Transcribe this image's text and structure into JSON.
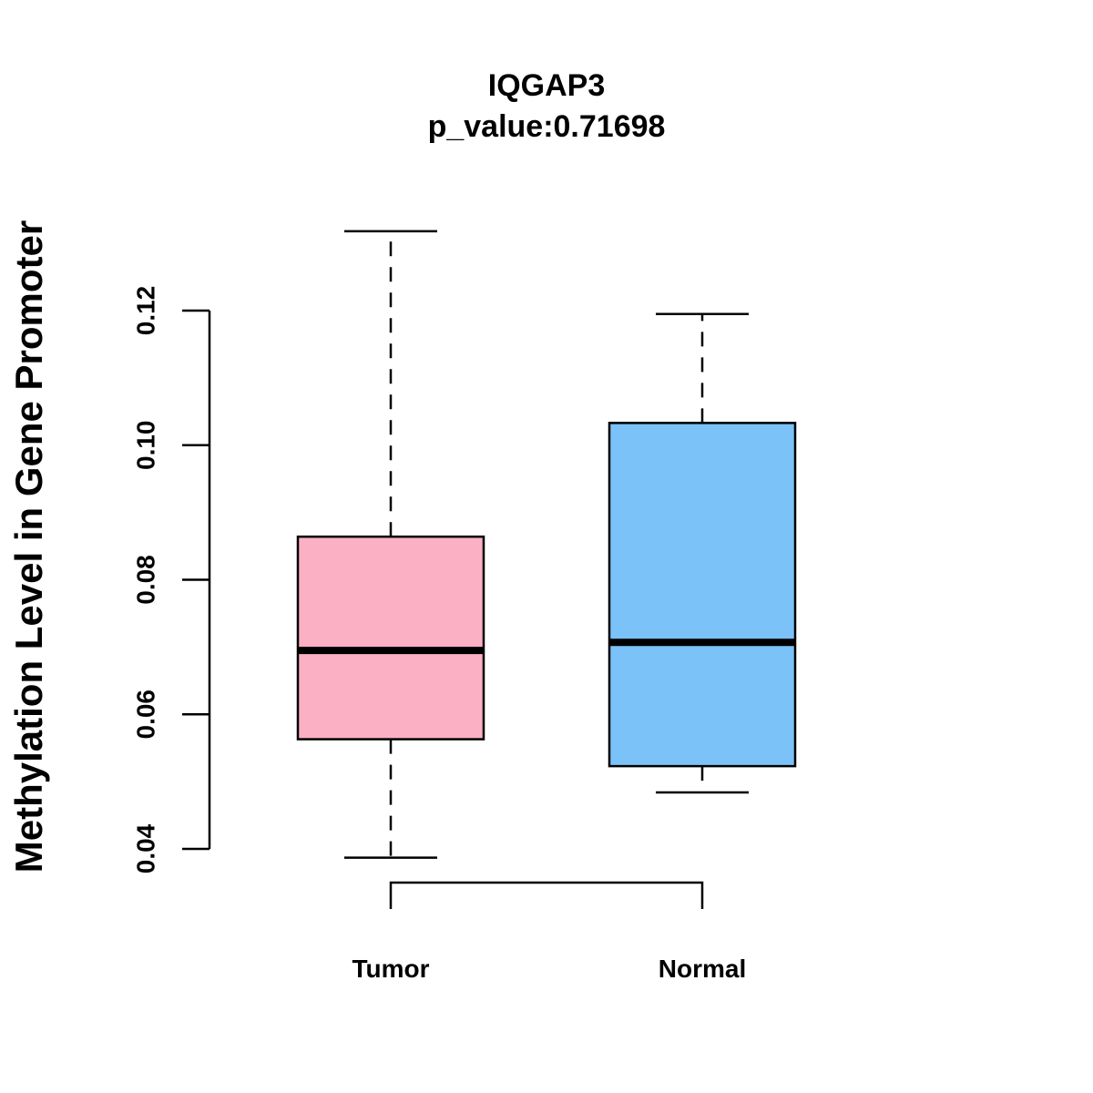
{
  "chart_data": {
    "type": "boxplot",
    "title": "IQGAP3",
    "subtitle": "p_value:0.71698",
    "xlabel": "",
    "ylabel": "Methylation Level in Gene Promoter",
    "ylim": [
      0.04,
      0.12
    ],
    "yticks": [
      0.04,
      0.06,
      0.08,
      0.1,
      0.12
    ],
    "ytick_labels": [
      "0.04",
      "0.06",
      "0.08",
      "0.10",
      "0.12"
    ],
    "categories": [
      "Tumor",
      "Normal"
    ],
    "series": [
      {
        "name": "Tumor",
        "color": "#FBB0C3",
        "whisker_low": 0.0387,
        "q1": 0.0563,
        "median": 0.0695,
        "q3": 0.0864,
        "whisker_high": 0.1318
      },
      {
        "name": "Normal",
        "color": "#7AC2F8",
        "whisker_low": 0.0484,
        "q1": 0.0523,
        "median": 0.0707,
        "q3": 0.1033,
        "whisker_high": 0.1195
      }
    ],
    "comparison_bracket": [
      "Tumor",
      "Normal"
    ]
  }
}
